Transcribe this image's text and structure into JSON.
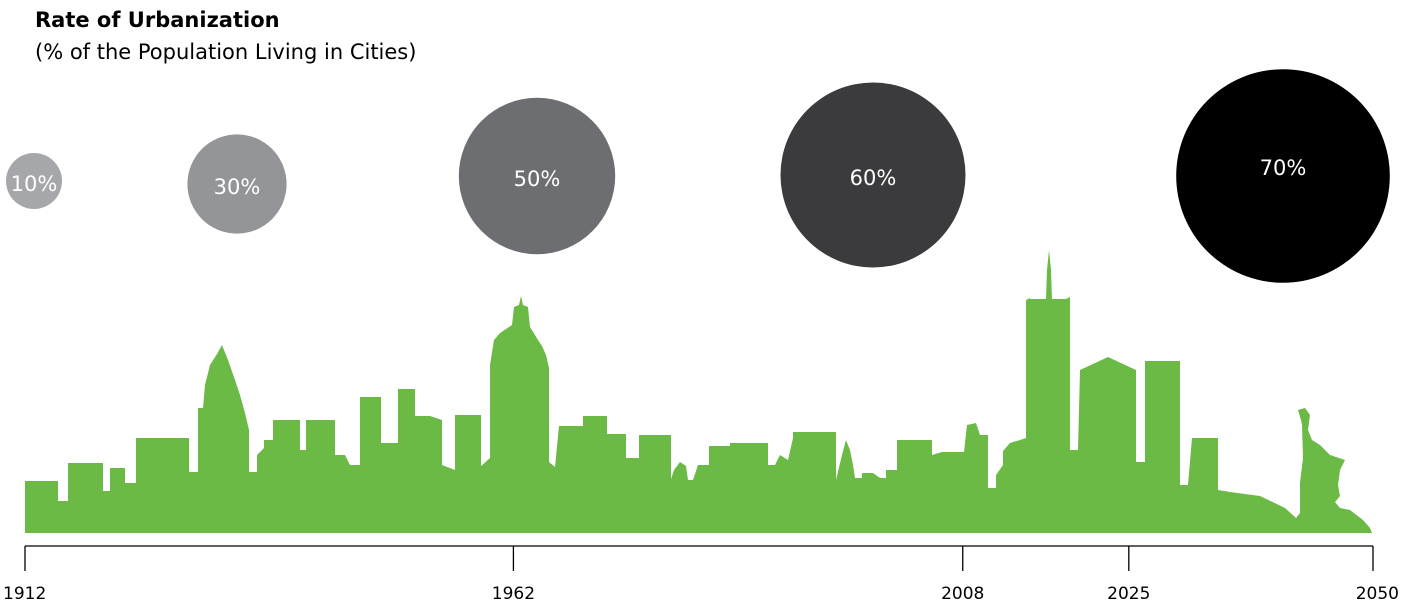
{
  "chart_data": {
    "type": "bubble-timeline",
    "title": "Rate of Urbanization",
    "subtitle": "(% of the Population Living in Cities)",
    "xlabel": "",
    "ylabel": "",
    "x": [
      "1912",
      "1962",
      "2008",
      "2025",
      "2050"
    ],
    "series": [
      {
        "values": [
          10,
          30,
          50,
          60,
          70
        ],
        "labels": [
          "10%",
          "30%",
          "50%",
          "60%",
          "70%"
        ],
        "colors": [
          "#a6a7aa",
          "#939598",
          "#6d6e71",
          "#3b3b3d",
          "#000000"
        ]
      }
    ],
    "xlim": [
      1912,
      2050
    ],
    "grid": false,
    "legend": "none",
    "decoration": {
      "skyline_color": "#6aba45",
      "axis_color": "#000000"
    }
  }
}
